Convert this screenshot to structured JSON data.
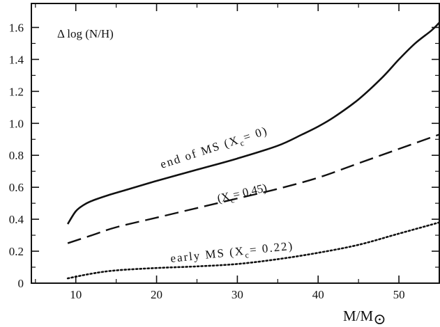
{
  "chart_data": {
    "type": "line",
    "title": "Δ log (N/H)",
    "xlabel": "M/M",
    "xlabel_symbol": "⊙",
    "ylabel": "",
    "xlim": [
      4.5,
      55
    ],
    "ylim": [
      0,
      1.75
    ],
    "xticks": [
      10,
      20,
      30,
      40,
      50
    ],
    "yticks": [
      0,
      0.2,
      0.4,
      0.6,
      0.8,
      1.0,
      1.2,
      1.4,
      1.6
    ],
    "ytick_labels": [
      "0",
      "0.2",
      "0.4",
      "0.6",
      "0.8",
      "1.0",
      "1.2",
      "1.4",
      "1.6"
    ],
    "grid": false,
    "series": [
      {
        "name": "end  of  MS (X",
        "name_sub": "c",
        "name_tail": "= 0)",
        "style": "solid",
        "x": [
          9,
          10,
          11,
          12,
          14,
          16,
          20,
          25,
          30,
          35,
          38,
          40,
          42,
          45,
          48,
          50,
          52,
          54,
          55
        ],
        "y": [
          0.37,
          0.45,
          0.49,
          0.515,
          0.55,
          0.58,
          0.64,
          0.71,
          0.78,
          0.86,
          0.93,
          0.98,
          1.04,
          1.15,
          1.29,
          1.4,
          1.5,
          1.58,
          1.63
        ]
      },
      {
        "name": "(X",
        "name_sub": "c",
        "name_tail": "= 0.45)",
        "style": "dashed",
        "x": [
          9,
          12,
          15,
          20,
          25,
          30,
          35,
          40,
          45,
          50,
          55
        ],
        "y": [
          0.25,
          0.3,
          0.35,
          0.41,
          0.47,
          0.53,
          0.59,
          0.66,
          0.75,
          0.84,
          0.93
        ]
      },
      {
        "name": "early  MS (X",
        "name_sub": "c",
        "name_tail": "= 0.22)",
        "style": "dotted",
        "x": [
          9,
          12,
          15,
          20,
          25,
          30,
          35,
          40,
          45,
          50,
          55
        ],
        "y": [
          0.03,
          0.06,
          0.08,
          0.095,
          0.105,
          0.12,
          0.15,
          0.19,
          0.24,
          0.31,
          0.38
        ]
      }
    ]
  }
}
